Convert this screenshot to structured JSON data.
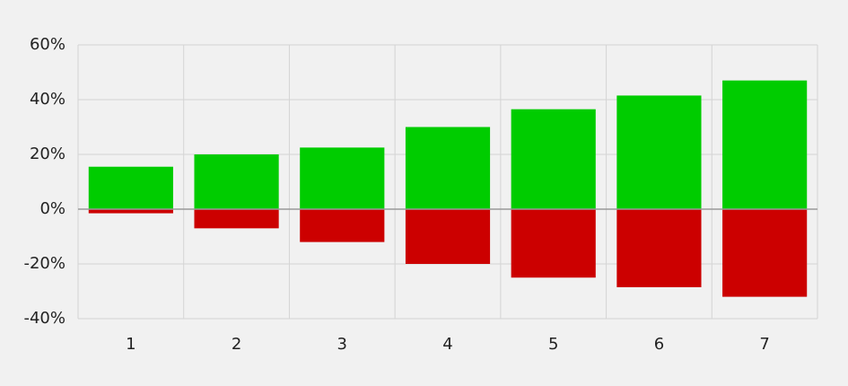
{
  "chart_data": {
    "type": "bar",
    "categories": [
      "1",
      "2",
      "3",
      "4",
      "5",
      "6",
      "7"
    ],
    "series": [
      {
        "color": "#00cc00",
        "values": [
          15.5,
          20,
          22.5,
          30,
          36.5,
          41.5,
          47
        ]
      },
      {
        "color": "#cc0000",
        "values": [
          -1.5,
          -7,
          -12,
          -20,
          -25,
          -28.5,
          -32
        ]
      }
    ],
    "ylim": [
      -40,
      60
    ],
    "yticks": [
      {
        "value": -40,
        "label": "-40%"
      },
      {
        "value": -20,
        "label": "-20%"
      },
      {
        "value": 0,
        "label": "0%"
      },
      {
        "value": 20,
        "label": "20%"
      },
      {
        "value": 40,
        "label": "40%"
      },
      {
        "value": 60,
        "label": "60%"
      }
    ],
    "grid": true
  }
}
